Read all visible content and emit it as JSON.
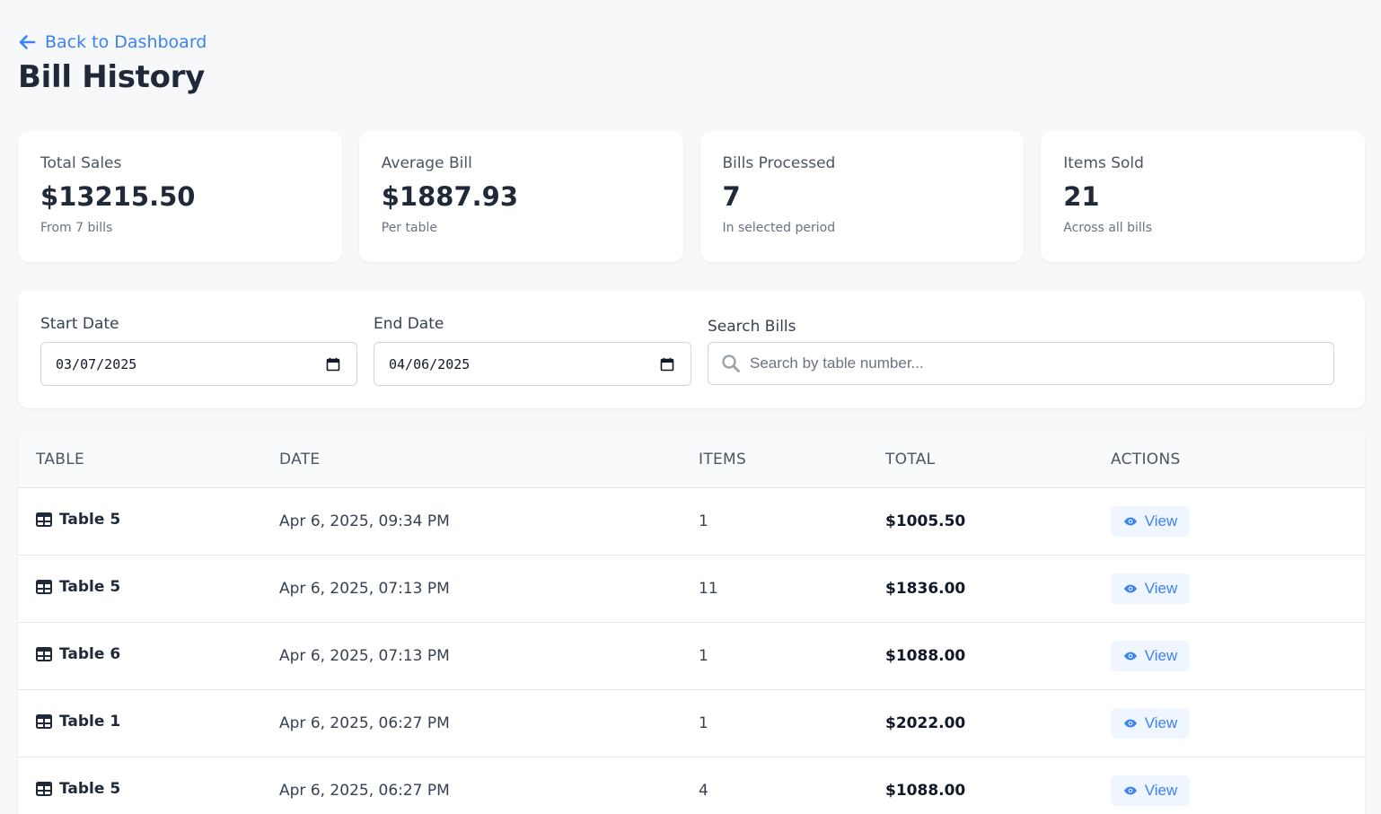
{
  "header": {
    "back_label": "Back to Dashboard",
    "title": "Bill History"
  },
  "stats": [
    {
      "label": "Total Sales",
      "value": "$13215.50",
      "sub": "From 7 bills"
    },
    {
      "label": "Average Bill",
      "value": "$1887.93",
      "sub": "Per table"
    },
    {
      "label": "Bills Processed",
      "value": "7",
      "sub": "In selected period"
    },
    {
      "label": "Items Sold",
      "value": "21",
      "sub": "Across all bills"
    }
  ],
  "filters": {
    "start_label": "Start Date",
    "start_value": "03/07/2025",
    "end_label": "End Date",
    "end_value": "04/06/2025",
    "search_label": "Search Bills",
    "search_placeholder": "Search by table number...",
    "search_value": ""
  },
  "table": {
    "headers": {
      "table": "TABLE",
      "date": "DATE",
      "items": "ITEMS",
      "total": "TOTAL",
      "actions": "ACTIONS"
    },
    "view_label": "View",
    "rows": [
      {
        "table": "Table 5",
        "date": "Apr 6, 2025, 09:34 PM",
        "items": "1",
        "total": "$1005.50"
      },
      {
        "table": "Table 5",
        "date": "Apr 6, 2025, 07:13 PM",
        "items": "11",
        "total": "$1836.00"
      },
      {
        "table": "Table 6",
        "date": "Apr 6, 2025, 07:13 PM",
        "items": "1",
        "total": "$1088.00"
      },
      {
        "table": "Table 1",
        "date": "Apr 6, 2025, 06:27 PM",
        "items": "1",
        "total": "$2022.00"
      },
      {
        "table": "Table 5",
        "date": "Apr 6, 2025, 06:27 PM",
        "items": "4",
        "total": "$1088.00"
      }
    ]
  },
  "colors": {
    "accent": "#3b82f6",
    "background": "#f7f8fa",
    "card": "#ffffff"
  },
  "icons": {
    "back": "arrow-left-icon",
    "calendar": "calendar-icon",
    "search": "search-icon",
    "table": "table-grid-icon",
    "view": "eye-icon"
  }
}
